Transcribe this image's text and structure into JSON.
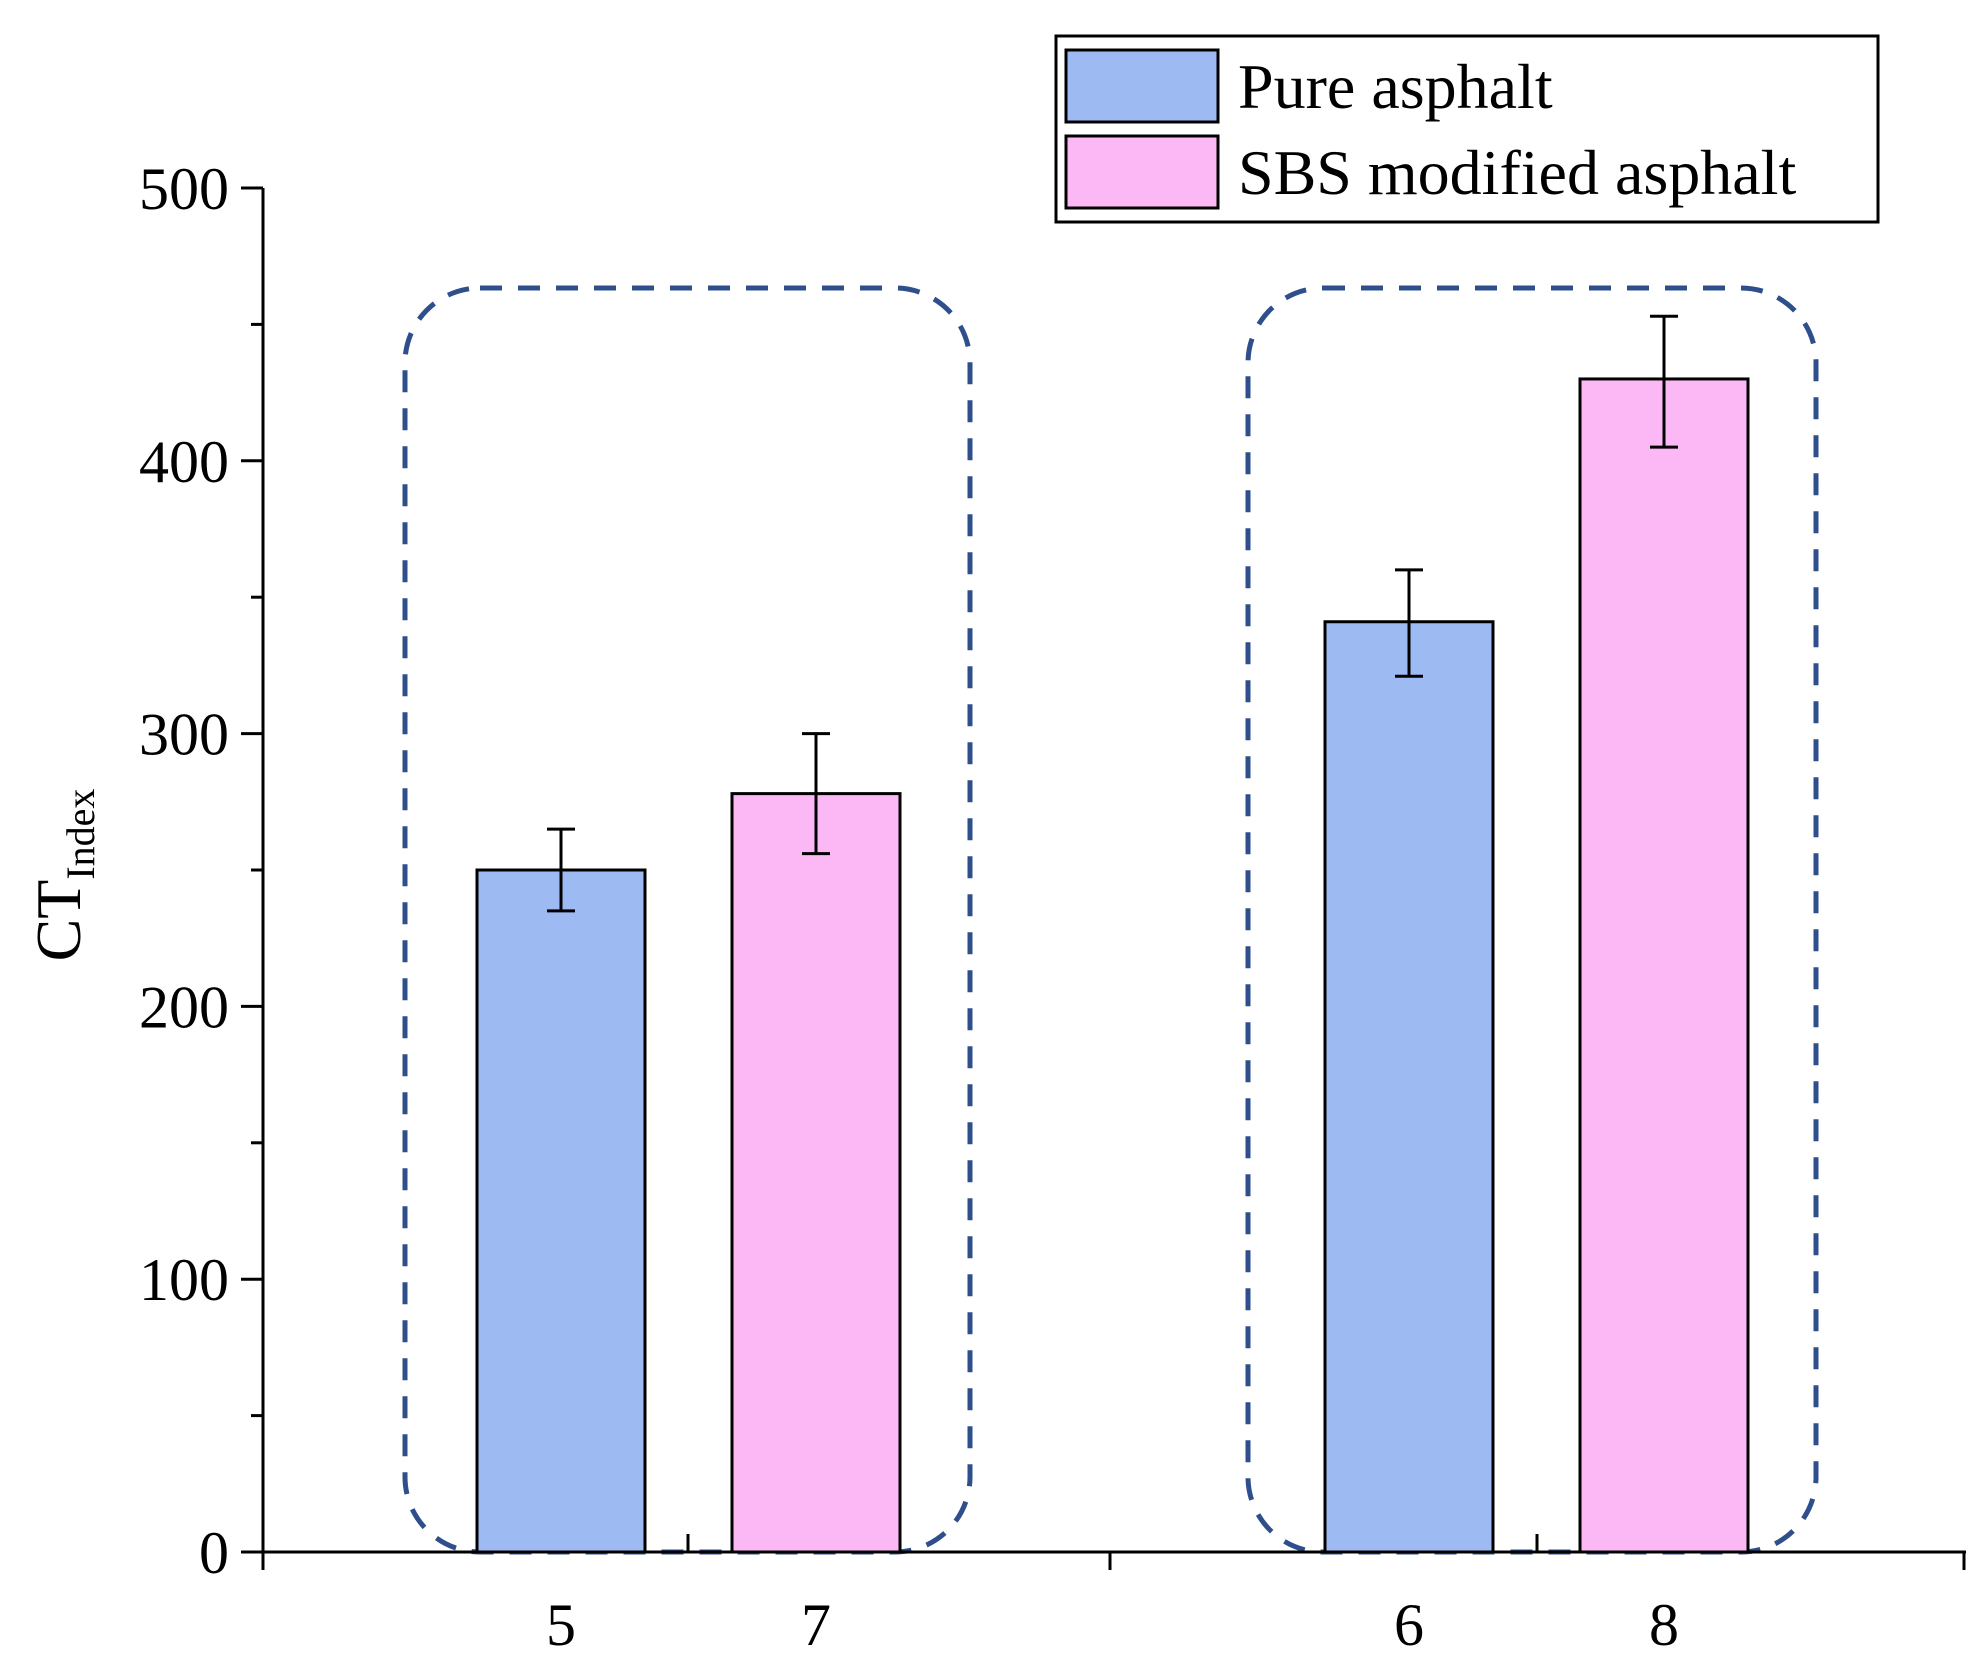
{
  "chart_data": {
    "type": "bar",
    "title": "",
    "ylabel": {
      "main": "CT",
      "subscript": "Index"
    },
    "xlabel": "",
    "ylim": [
      0,
      500
    ],
    "yticks": [
      0,
      100,
      200,
      300,
      400,
      500
    ],
    "yticks_minor": [
      50,
      150,
      250,
      350,
      450
    ],
    "grid": false,
    "legend_position": "top-right",
    "series": [
      {
        "name": "Pure asphalt",
        "color": "#9dbaf2"
      },
      {
        "name": "SBS modified asphalt",
        "color": "#fcb8f5"
      }
    ],
    "bars": [
      {
        "label": "5",
        "series": "Pure asphalt",
        "value": 250,
        "error_low": 235,
        "error_high": 265
      },
      {
        "label": "7",
        "series": "SBS modified asphalt",
        "value": 278,
        "error_low": 256,
        "error_high": 300
      },
      {
        "label": "6",
        "series": "Pure asphalt",
        "value": 341,
        "error_low": 321,
        "error_high": 360
      },
      {
        "label": "8",
        "series": "SBS modified asphalt",
        "value": 430,
        "error_low": 405,
        "error_high": 453
      }
    ],
    "groups": [
      {
        "bars": [
          "5",
          "7"
        ]
      },
      {
        "bars": [
          "6",
          "8"
        ]
      }
    ],
    "group_outline_color": "#2e4f8c"
  }
}
